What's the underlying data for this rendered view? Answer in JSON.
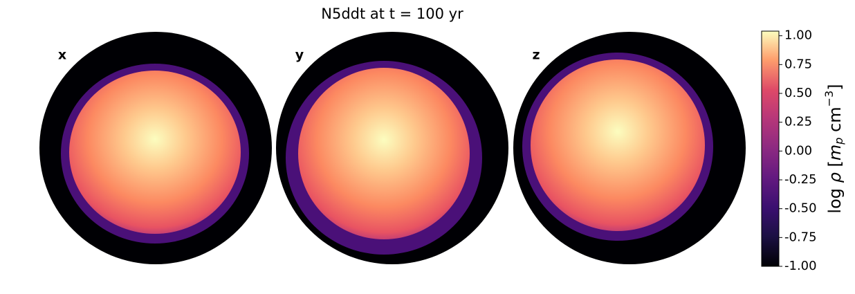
{
  "chart_data": {
    "type": "image",
    "title": "N5ddt at t = 100 yr",
    "panels": [
      "x",
      "y",
      "z"
    ],
    "colormap": "magma",
    "colorbar": {
      "clim": [
        -1.0,
        1.04
      ],
      "ticks": [
        {
          "value": 1.0,
          "label": "1.00"
        },
        0.75,
        {
          "value": 0.5,
          "label": "0.50"
        },
        0.25,
        {
          "value": 0.0,
          "label": "0.00"
        },
        -0.25,
        {
          "value": -0.5,
          "label": "-0.50"
        },
        -0.75,
        {
          "value": -1.0,
          "label": "-1.00"
        }
      ],
      "label_parts": [
        "log ",
        "ρ",
        " [",
        "m",
        "p",
        " cm",
        "−3",
        "]"
      ]
    }
  }
}
